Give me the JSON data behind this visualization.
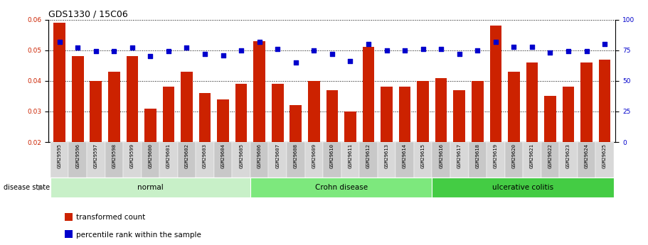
{
  "title": "GDS1330 / 15C06",
  "samples": [
    "GSM29595",
    "GSM29596",
    "GSM29597",
    "GSM29598",
    "GSM29599",
    "GSM29600",
    "GSM29601",
    "GSM29602",
    "GSM29603",
    "GSM29604",
    "GSM29605",
    "GSM29606",
    "GSM29607",
    "GSM29608",
    "GSM29609",
    "GSM29610",
    "GSM29611",
    "GSM29612",
    "GSM29613",
    "GSM29614",
    "GSM29615",
    "GSM29616",
    "GSM29617",
    "GSM29618",
    "GSM29619",
    "GSM29620",
    "GSM29621",
    "GSM29622",
    "GSM29623",
    "GSM29624",
    "GSM29625"
  ],
  "red_values": [
    0.059,
    0.048,
    0.04,
    0.043,
    0.048,
    0.031,
    0.038,
    0.043,
    0.036,
    0.034,
    0.039,
    0.053,
    0.039,
    0.032,
    0.04,
    0.037,
    0.03,
    0.051,
    0.038,
    0.038,
    0.04,
    0.041,
    0.037,
    0.04,
    0.058,
    0.043,
    0.046,
    0.035,
    0.038,
    0.046,
    0.047
  ],
  "blue_values": [
    82,
    77,
    74,
    74,
    77,
    70,
    74,
    77,
    72,
    71,
    75,
    82,
    76,
    65,
    75,
    72,
    66,
    80,
    75,
    75,
    76,
    76,
    72,
    75,
    82,
    78,
    78,
    73,
    74,
    74,
    80
  ],
  "groups": [
    {
      "label": "normal",
      "start": 0,
      "end": 11,
      "color": "#c8f0c8"
    },
    {
      "label": "Crohn disease",
      "start": 11,
      "end": 21,
      "color": "#7de87d"
    },
    {
      "label": "ulcerative colitis",
      "start": 21,
      "end": 31,
      "color": "#44cc44"
    }
  ],
  "ymin": 0.02,
  "ymax": 0.06,
  "yticks_left": [
    0.02,
    0.03,
    0.04,
    0.05,
    0.06
  ],
  "yticks_right": [
    0,
    25,
    50,
    75,
    100
  ],
  "bar_color": "#cc2200",
  "dot_color": "#0000cc",
  "gray_color": "#c0c0c0",
  "title_fontsize": 9,
  "tick_fontsize": 6.5,
  "label_fontsize": 7.5,
  "disease_state_label": "disease state",
  "legend_red": "transformed count",
  "legend_blue": "percentile rank within the sample"
}
